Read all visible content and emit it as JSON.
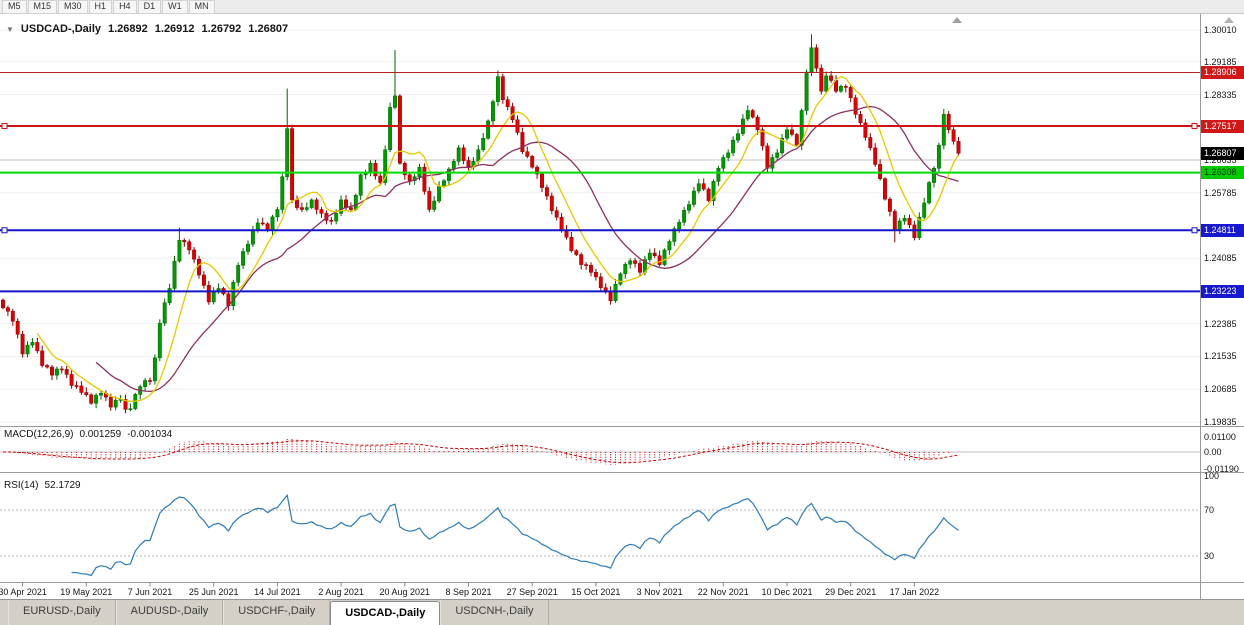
{
  "toolbar": {
    "timeframes": [
      "M5",
      "M15",
      "M30",
      "H1",
      "H4",
      "D1",
      "W1",
      "MN"
    ]
  },
  "chart_header": {
    "collapse_icon": "▼",
    "symbol": "USDCAD-,Daily",
    "open": "1.26892",
    "high": "1.26912",
    "low": "1.26792",
    "close": "1.26807"
  },
  "bottom_tabs": [
    {
      "label": "EURUSD-,Daily",
      "active": false
    },
    {
      "label": "AUDUSD-,Daily",
      "active": false
    },
    {
      "label": "USDCHF-,Daily",
      "active": false
    },
    {
      "label": "USDCAD-,Daily",
      "active": true
    },
    {
      "label": "USDCNH-,Daily",
      "active": false
    }
  ],
  "chart_data": {
    "type": "candlestick",
    "symbol": "USDCAD",
    "timeframe": "Daily",
    "x_labels": [
      "30 Apr 2021",
      "19 May 2021",
      "7 Jun 2021",
      "25 Jun 2021",
      "14 Jul 2021",
      "2 Aug 2021",
      "20 Aug 2021",
      "8 Sep 2021",
      "27 Sep 2021",
      "15 Oct 2021",
      "3 Nov 2021",
      "22 Nov 2021",
      "10 Dec 2021",
      "29 Dec 2021",
      "17 Jan 2022"
    ],
    "candles_per_label": 13,
    "first_open": 1.23,
    "closes": [
      1.228,
      1.2271,
      1.2245,
      1.2211,
      1.216,
      1.2183,
      1.219,
      1.2168,
      1.213,
      1.2126,
      1.2105,
      1.2121,
      1.212,
      1.2107,
      1.2078,
      1.2077,
      1.206,
      1.2054,
      1.2032,
      1.2053,
      1.2058,
      1.2048,
      1.2022,
      1.204,
      1.2042,
      1.2016,
      1.2018,
      1.2055,
      1.2075,
      1.2091,
      1.209,
      1.215,
      1.224,
      1.2293,
      1.233,
      1.2401,
      1.2455,
      1.2451,
      1.243,
      1.2406,
      1.2365,
      1.2338,
      1.2295,
      1.2321,
      1.233,
      1.2316,
      1.2285,
      1.2346,
      1.239,
      1.2426,
      1.2445,
      1.2481,
      1.25,
      1.2498,
      1.248,
      1.2516,
      1.2535,
      1.262,
      1.2745,
      1.256,
      1.254,
      1.2535,
      1.254,
      1.256,
      1.2535,
      1.2525,
      1.2507,
      1.2505,
      1.2525,
      1.256,
      1.254,
      1.2535,
      1.2572,
      1.2625,
      1.2632,
      1.2655,
      1.2622,
      1.2605,
      1.269,
      1.28,
      1.283,
      1.2655,
      1.2625,
      1.261,
      1.262,
      1.2645,
      1.2582,
      1.2535,
      1.2557,
      1.2595,
      1.261,
      1.264,
      1.266,
      1.2695,
      1.2662,
      1.2645,
      1.266,
      1.269,
      1.272,
      1.2765,
      1.2815,
      1.288,
      1.282,
      1.2802,
      1.2768,
      1.2735,
      1.2685,
      1.2673,
      1.2645,
      1.2627,
      1.2592,
      1.257,
      1.2532,
      1.2515,
      1.2482,
      1.2463,
      1.2428,
      1.2418,
      1.2392,
      1.239,
      1.2372,
      1.236,
      1.2332,
      1.2323,
      1.2298,
      1.2341,
      1.2368,
      1.2393,
      1.2402,
      1.2395,
      1.2372,
      1.2405,
      1.2422,
      1.2415,
      1.2392,
      1.243,
      1.2452,
      1.2485,
      1.2502,
      1.2533,
      1.2548,
      1.2583,
      1.2602,
      1.2588,
      1.2558,
      1.2608,
      1.2642,
      1.267,
      1.2682,
      1.2715,
      1.2732,
      1.277,
      1.2792,
      1.2775,
      1.2742,
      1.27,
      1.2642,
      1.267,
      1.2682,
      1.272,
      1.2742,
      1.273,
      1.2702,
      1.2792,
      1.2892,
      1.2955,
      1.2902,
      1.2842,
      1.2882,
      1.287,
      1.2842,
      1.2855,
      1.2852,
      1.2825,
      1.2782,
      1.276,
      1.2722,
      1.2695,
      1.2652,
      1.2615,
      1.2562,
      1.253,
      1.2482,
      1.2505,
      1.2512,
      1.2495,
      1.2462,
      1.2515,
      1.2552,
      1.2605,
      1.2642,
      1.2702,
      1.2782,
      1.2742,
      1.2712,
      1.2681
    ],
    "high_overrides": {
      "36": 1.2488,
      "58": 1.2849,
      "80": 1.2949,
      "101": 1.2896,
      "165": 1.299,
      "192": 1.2796
    },
    "low_overrides": {
      "25": 1.2006,
      "124": 1.2288,
      "182": 1.245
    },
    "ylim": [
      1.19835,
      1.3001
    ],
    "y_axis": {
      "ticks": [
        {
          "label": "1.30010",
          "price": 1.3001
        },
        {
          "label": "1.29185",
          "price": 1.29185
        },
        {
          "label": "1.28335",
          "price": 1.28335
        },
        {
          "label": "1.26635",
          "price": 1.26635
        },
        {
          "label": "1.25785",
          "price": 1.25785
        },
        {
          "label": "1.24085",
          "price": 1.24085
        },
        {
          "label": "1.22385",
          "price": 1.22385
        },
        {
          "label": "1.21535",
          "price": 1.21535
        },
        {
          "label": "1.20685",
          "price": 1.20685
        },
        {
          "label": "1.19835",
          "price": 1.19835
        }
      ],
      "grid_strong_price": 1.26635
    },
    "hlines": [
      {
        "price": 1.28906,
        "label": "1.28906",
        "color": "#b22020",
        "width": 1,
        "badge_bg": "#d01818",
        "badge_text": "#ffffff",
        "end_markers": false
      },
      {
        "price": 1.27517,
        "label": "1.27517",
        "color": "#cc1414",
        "width": 2,
        "badge_bg": "#d01818",
        "badge_text": "#ffffff",
        "end_markers": true
      },
      {
        "price": 1.26308,
        "label": "1.26308",
        "color": "#00dd00",
        "width": 2,
        "badge_bg": "#00cc00",
        "badge_text": "#003300",
        "end_markers": false
      },
      {
        "price": 1.24811,
        "label": "1.24811",
        "color": "#1414cc",
        "width": 2,
        "badge_bg": "#1818cc",
        "badge_text": "#ffffff",
        "end_markers": true
      },
      {
        "price": 1.23223,
        "label": "1.23223",
        "color": "#1414cc",
        "width": 2,
        "badge_bg": "#1818cc",
        "badge_text": "#ffffff",
        "end_markers": false
      }
    ],
    "current_price_badge": {
      "label": "1.26807",
      "price": 1.26807,
      "badge_bg": "#000000",
      "badge_text": "#ffffff"
    },
    "colors": {
      "up_fill": "#009900",
      "up_border": "#006600",
      "down_fill": "#dd0000",
      "down_border": "#880000",
      "ma_fast": "#e6c800",
      "ma_slow": "#8b3060",
      "macd": "#cc0000",
      "rsi": "#2e7bb5"
    },
    "ma_fast_period": 8,
    "ma_slow_period": 20,
    "macd": {
      "label": "MACD(12,26,9)",
      "value_main": "0.001259",
      "value_signal": "-0.001034",
      "params": [
        12,
        26,
        9
      ],
      "axis_ticks": [
        {
          "label": "0.01100",
          "value": 0.011
        },
        {
          "label": "0.00",
          "value": 0
        },
        {
          "label": "-0.01190",
          "value": -0.0119
        }
      ]
    },
    "rsi": {
      "label": "RSI(14)",
      "value": "52.1729",
      "period": 14,
      "levels": [
        70,
        30
      ],
      "axis_ticks": [
        {
          "label": "100",
          "value": 100
        },
        {
          "label": "70",
          "value": 70
        },
        {
          "label": "30",
          "value": 30
        }
      ]
    }
  }
}
